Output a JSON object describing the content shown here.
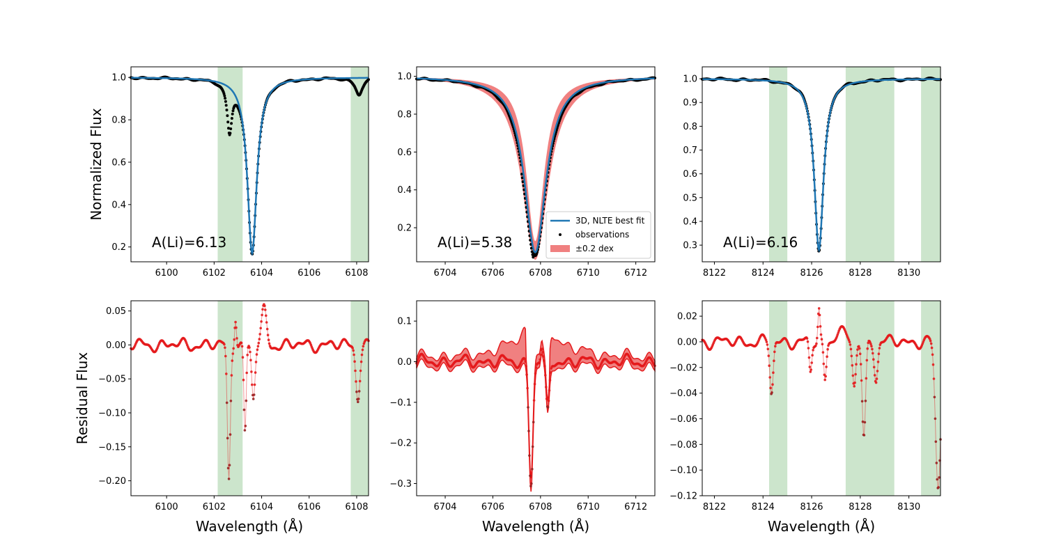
{
  "figure": {
    "ylabel_top": "Normalized Flux",
    "ylabel_bottom": "Residual Flux",
    "xlabel": "Wavelength (Å)"
  },
  "colors": {
    "model": "#1f77b4",
    "obs": "#000000",
    "band": "#f08080",
    "residual": "#e41a1c",
    "residual_dark": "#8b2020",
    "mask": "#cce5cc"
  },
  "legend": {
    "model": "3D, NLTE best fit",
    "obs": "observations",
    "band": "±0.2 dex"
  },
  "chart_data": [
    {
      "type": "line",
      "panel": "top-left",
      "annotation": "A(Li)=6.13",
      "xlim": [
        6098.5,
        6108.5
      ],
      "ylim": [
        0.13,
        1.05
      ],
      "xticks": [
        6100,
        6102,
        6104,
        6106,
        6108
      ],
      "yticks": [
        0.2,
        0.4,
        0.6,
        0.8,
        1.0
      ],
      "ytick_labels": [
        "0.2",
        "0.4",
        "0.6",
        "0.8",
        "1.0"
      ],
      "mask_regions": [
        [
          6102.15,
          6103.2
        ],
        [
          6107.75,
          6108.5
        ]
      ],
      "line": {
        "center": 6103.6,
        "depth": 0.83,
        "width": 0.24
      },
      "blends": [
        {
          "center": 6102.65,
          "depth": 0.22,
          "width": 0.12
        },
        {
          "center": 6108.1,
          "depth": 0.08,
          "width": 0.18
        }
      ],
      "series": [
        "3D, NLTE best fit",
        "observations"
      ]
    },
    {
      "type": "line",
      "panel": "top-middle",
      "annotation": "A(Li)=5.38",
      "xlim": [
        6702.8,
        6712.8
      ],
      "ylim": [
        0.02,
        1.05
      ],
      "xticks": [
        6704,
        6706,
        6708,
        6710,
        6712
      ],
      "yticks": [
        0.2,
        0.4,
        0.6,
        0.8,
        1.0
      ],
      "ytick_labels": [
        "0.2",
        "0.4",
        "0.6",
        "0.8",
        "1.0"
      ],
      "mask_regions": [],
      "line": {
        "center": 6707.78,
        "depth": 0.93,
        "width": 0.55
      },
      "band_dex": 0.2,
      "series": [
        "3D, NLTE best fit",
        "observations",
        "±0.2 dex"
      ]
    },
    {
      "type": "line",
      "panel": "top-right",
      "annotation": "A(Li)=6.16",
      "xlim": [
        8121.5,
        8131.3
      ],
      "ylim": [
        0.23,
        1.05
      ],
      "xticks": [
        8122,
        8124,
        8126,
        8128,
        8130
      ],
      "yticks": [
        0.3,
        0.4,
        0.5,
        0.6,
        0.7,
        0.8,
        0.9,
        1.0
      ],
      "ytick_labels": [
        "0.3",
        "0.4",
        "0.5",
        "0.6",
        "0.7",
        "0.8",
        "0.9",
        "1.0"
      ],
      "mask_regions": [
        [
          8124.25,
          8125.0
        ],
        [
          8127.4,
          8129.4
        ],
        [
          8130.5,
          8131.3
        ]
      ],
      "line": {
        "center": 8126.3,
        "depth": 0.72,
        "width": 0.23
      },
      "series": [
        "3D, NLTE best fit",
        "observations"
      ]
    },
    {
      "type": "scatter",
      "panel": "bottom-left",
      "xlim": [
        6098.5,
        6108.5
      ],
      "ylim": [
        -0.222,
        0.065
      ],
      "xticks": [
        6100,
        6102,
        6104,
        6106,
        6108
      ],
      "yticks": [
        -0.2,
        -0.15,
        -0.1,
        -0.05,
        0.0,
        0.05
      ],
      "ytick_labels": [
        "−0.20",
        "−0.15",
        "−0.10",
        "−0.05",
        "0.00",
        "0.05"
      ],
      "mask_regions": [
        [
          6102.15,
          6103.2
        ],
        [
          6107.75,
          6108.5
        ]
      ],
      "residual_features": [
        {
          "center": 6102.62,
          "amp": -0.2,
          "width": 0.09
        },
        {
          "center": 6102.9,
          "amp": 0.045,
          "width": 0.06
        },
        {
          "center": 6103.3,
          "amp": -0.13,
          "width": 0.07
        },
        {
          "center": 6103.65,
          "amp": -0.08,
          "width": 0.1
        },
        {
          "center": 6104.1,
          "amp": 0.05,
          "width": 0.15
        },
        {
          "center": 6108.05,
          "amp": -0.075,
          "width": 0.12
        }
      ]
    },
    {
      "type": "scatter",
      "panel": "bottom-middle",
      "xlim": [
        6702.8,
        6712.8
      ],
      "ylim": [
        -0.33,
        0.15
      ],
      "xticks": [
        6704,
        6706,
        6708,
        6710,
        6712
      ],
      "yticks": [
        -0.3,
        -0.2,
        -0.1,
        0.0,
        0.1
      ],
      "ytick_labels": [
        "−0.3",
        "−0.2",
        "−0.1",
        "0.0",
        "0.1"
      ],
      "mask_regions": [],
      "residual_features": [
        {
          "center": 6707.6,
          "amp": -0.3,
          "width": 0.12
        },
        {
          "center": 6708.3,
          "amp": -0.13,
          "width": 0.1
        },
        {
          "center": 6708.05,
          "amp": 0.03,
          "width": 0.06
        }
      ]
    },
    {
      "type": "scatter",
      "panel": "bottom-right",
      "xlim": [
        8121.5,
        8131.3
      ],
      "ylim": [
        -0.12,
        0.032
      ],
      "xticks": [
        8122,
        8124,
        8126,
        8128,
        8130
      ],
      "yticks": [
        -0.12,
        -0.1,
        -0.08,
        -0.06,
        -0.04,
        -0.02,
        0.0,
        0.02
      ],
      "ytick_labels": [
        "−0.12",
        "−0.10",
        "−0.08",
        "−0.06",
        "−0.04",
        "−0.02",
        "0.00",
        "0.02"
      ],
      "mask_regions": [
        [
          8124.25,
          8125.0
        ],
        [
          8127.4,
          8129.4
        ],
        [
          8130.5,
          8131.3
        ]
      ],
      "residual_features": [
        {
          "center": 8124.35,
          "amp": -0.04,
          "width": 0.1
        },
        {
          "center": 8125.95,
          "amp": -0.025,
          "width": 0.08
        },
        {
          "center": 8126.3,
          "amp": 0.025,
          "width": 0.06
        },
        {
          "center": 8126.55,
          "amp": -0.03,
          "width": 0.08
        },
        {
          "center": 8127.15,
          "amp": 0.012,
          "width": 0.2
        },
        {
          "center": 8127.75,
          "amp": -0.035,
          "width": 0.1
        },
        {
          "center": 8128.15,
          "amp": -0.075,
          "width": 0.1
        },
        {
          "center": 8128.65,
          "amp": -0.028,
          "width": 0.1
        },
        {
          "center": 8131.2,
          "amp": -0.115,
          "width": 0.15
        }
      ]
    }
  ]
}
